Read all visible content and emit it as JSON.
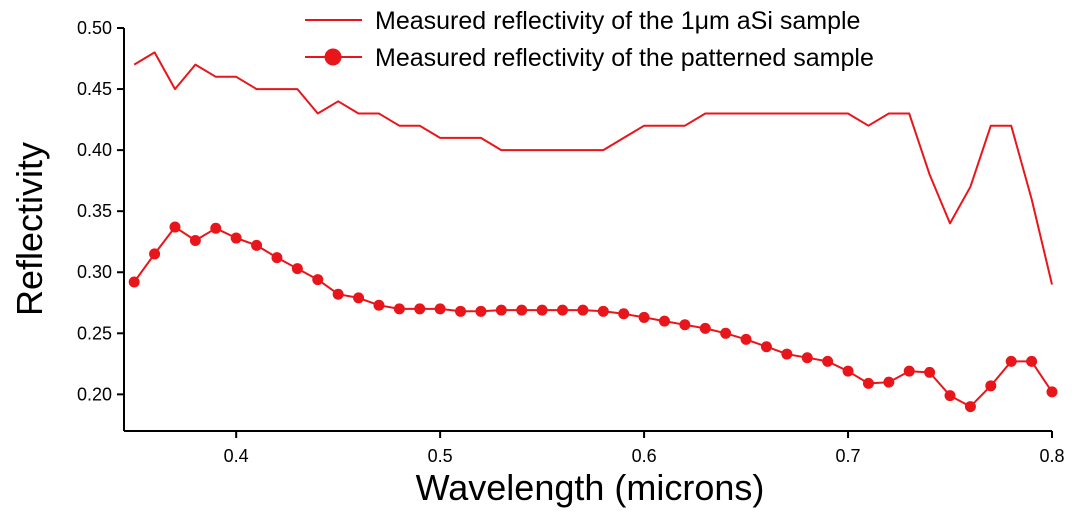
{
  "chart_data": {
    "type": "line",
    "xlabel": "Wavelength (microns)",
    "ylabel": "Reflectivity",
    "xlim": [
      0.345,
      0.8
    ],
    "ylim": [
      0.17,
      0.5
    ],
    "xticks": [
      0.4,
      0.5,
      0.6,
      0.7,
      0.8
    ],
    "xtick_labels": [
      "0.4",
      "0.5",
      "0.6",
      "0.7",
      "0.8"
    ],
    "yticks": [
      0.2,
      0.25,
      0.3,
      0.35,
      0.4,
      0.45,
      0.5
    ],
    "ytick_labels": [
      "0.20",
      "0.25",
      "0.30",
      "0.35",
      "0.40",
      "0.45",
      "0.50"
    ],
    "grid": false,
    "legend_position": "top-right",
    "series_color": "#e8161b",
    "series": [
      {
        "name": "Measured reflectivity of the 1μm aSi sample",
        "marker": "none",
        "x": [
          0.35,
          0.36,
          0.37,
          0.38,
          0.39,
          0.4,
          0.41,
          0.42,
          0.43,
          0.44,
          0.45,
          0.46,
          0.47,
          0.48,
          0.49,
          0.5,
          0.51,
          0.52,
          0.53,
          0.54,
          0.55,
          0.56,
          0.57,
          0.58,
          0.59,
          0.6,
          0.61,
          0.62,
          0.63,
          0.64,
          0.65,
          0.66,
          0.67,
          0.68,
          0.69,
          0.7,
          0.71,
          0.72,
          0.73,
          0.74,
          0.75,
          0.76,
          0.77,
          0.78,
          0.79,
          0.8
        ],
        "y": [
          0.47,
          0.48,
          0.45,
          0.47,
          0.46,
          0.46,
          0.45,
          0.45,
          0.45,
          0.43,
          0.44,
          0.43,
          0.43,
          0.42,
          0.42,
          0.41,
          0.41,
          0.41,
          0.4,
          0.4,
          0.4,
          0.4,
          0.4,
          0.4,
          0.41,
          0.42,
          0.42,
          0.42,
          0.43,
          0.43,
          0.43,
          0.43,
          0.43,
          0.43,
          0.43,
          0.43,
          0.42,
          0.43,
          0.43,
          0.38,
          0.34,
          0.37,
          0.42,
          0.42,
          0.36,
          0.29
        ]
      },
      {
        "name": "Measured reflectivity of the patterned sample",
        "marker": "circle",
        "x": [
          0.35,
          0.36,
          0.37,
          0.38,
          0.39,
          0.4,
          0.41,
          0.42,
          0.43,
          0.44,
          0.45,
          0.46,
          0.47,
          0.48,
          0.49,
          0.5,
          0.51,
          0.52,
          0.53,
          0.54,
          0.55,
          0.56,
          0.57,
          0.58,
          0.59,
          0.6,
          0.61,
          0.62,
          0.63,
          0.64,
          0.65,
          0.66,
          0.67,
          0.68,
          0.69,
          0.7,
          0.71,
          0.72,
          0.73,
          0.74,
          0.75,
          0.76,
          0.77,
          0.78,
          0.79,
          0.8
        ],
        "y": [
          0.292,
          0.315,
          0.337,
          0.326,
          0.336,
          0.328,
          0.322,
          0.312,
          0.303,
          0.294,
          0.282,
          0.279,
          0.273,
          0.27,
          0.27,
          0.27,
          0.268,
          0.268,
          0.269,
          0.269,
          0.269,
          0.269,
          0.269,
          0.268,
          0.266,
          0.263,
          0.26,
          0.257,
          0.254,
          0.25,
          0.245,
          0.239,
          0.233,
          0.23,
          0.227,
          0.219,
          0.209,
          0.21,
          0.219,
          0.218,
          0.199,
          0.19,
          0.207,
          0.227,
          0.227,
          0.202
        ]
      }
    ]
  }
}
